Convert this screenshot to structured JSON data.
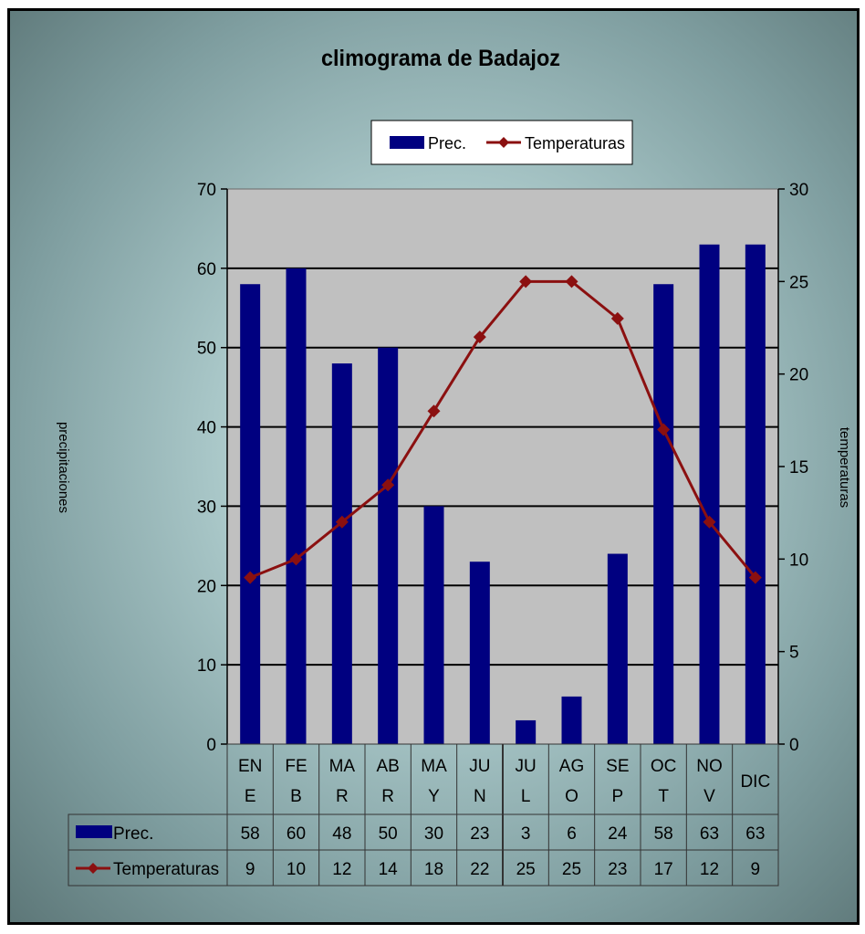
{
  "chart_data": {
    "type": "bar",
    "title": "climograma de Badajoz",
    "ylabel": "precipitaciones",
    "y2label": "temperaturas",
    "categories": [
      "ENE",
      "FEB",
      "MAR",
      "ABR",
      "MAY",
      "JUN",
      "JUL",
      "AGO",
      "SEP",
      "OCT",
      "NOV",
      "DIC"
    ],
    "category_labels": [
      [
        "EN",
        "E"
      ],
      [
        "FE",
        "B"
      ],
      [
        "MA",
        "R"
      ],
      [
        "AB",
        "R"
      ],
      [
        "MA",
        "Y"
      ],
      [
        "JU",
        "N"
      ],
      [
        "JU",
        "L"
      ],
      [
        "AG",
        "O"
      ],
      [
        "SE",
        "P"
      ],
      [
        "OC",
        "T"
      ],
      [
        "NO",
        "V"
      ],
      [
        "DIC"
      ]
    ],
    "series": [
      {
        "name": "Prec.",
        "type": "bar",
        "axis": "left",
        "color": "#000080",
        "values": [
          58,
          60,
          48,
          50,
          30,
          23,
          3,
          6,
          24,
          58,
          63,
          63
        ]
      },
      {
        "name": "Temperaturas",
        "type": "line",
        "axis": "right",
        "color": "#8b1010",
        "values": [
          9,
          10,
          12,
          14,
          18,
          22,
          25,
          25,
          23,
          17,
          12,
          9
        ]
      }
    ],
    "ylim": [
      0,
      70
    ],
    "yticks": [
      0,
      10,
      20,
      30,
      40,
      50,
      60,
      70
    ],
    "y2lim": [
      0,
      30
    ],
    "y2ticks": [
      0,
      5,
      10,
      15,
      20,
      25,
      30
    ],
    "legend_position": "top-center",
    "data_table": true,
    "grid": true,
    "plot_background": "#c0c0c0"
  }
}
